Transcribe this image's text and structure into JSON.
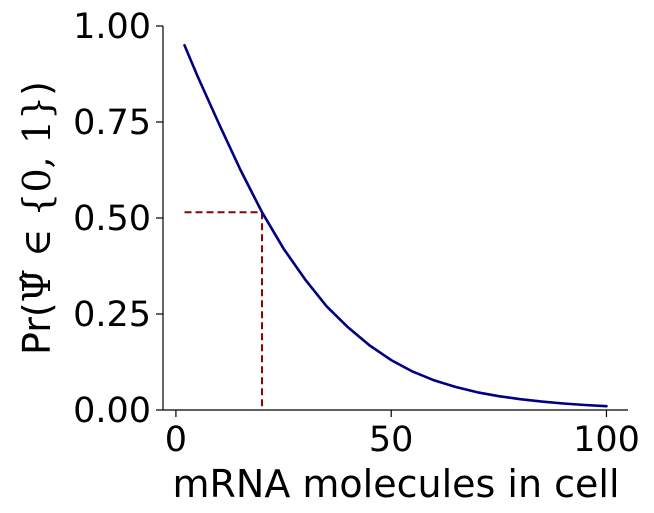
{
  "chart_data": {
    "type": "line",
    "title": "",
    "xlabel": "mRNA molecules in cell",
    "ylabel": {
      "prefix": "Pr(",
      "symbol": "Ψ̂",
      "relation": " ∈ ",
      "set": "{0, 1}",
      "suffix": ")"
    },
    "xlim": [
      -3,
      105
    ],
    "ylim": [
      0,
      1
    ],
    "xticks": [
      0,
      50,
      100
    ],
    "xtick_labels": [
      "0",
      "50",
      "100"
    ],
    "yticks": [
      0,
      0.25,
      0.5,
      0.75,
      1.0
    ],
    "ytick_labels": [
      "0.00",
      "0.25",
      "0.50",
      "0.75",
      "1.00"
    ],
    "grid": false,
    "series": [
      {
        "color": "#000080",
        "style": "solid",
        "x": [
          2,
          5,
          10,
          15,
          20,
          25,
          30,
          35,
          40,
          45,
          50,
          55,
          60,
          65,
          70,
          75,
          80,
          85,
          90,
          95,
          100
        ],
        "y": [
          0.95,
          0.87,
          0.745,
          0.625,
          0.515,
          0.42,
          0.34,
          0.27,
          0.215,
          0.168,
          0.13,
          0.1,
          0.077,
          0.06,
          0.046,
          0.036,
          0.028,
          0.022,
          0.017,
          0.013,
          0.01
        ]
      }
    ],
    "reference_lines": {
      "color": "#8b0000",
      "style": "dashed",
      "x": 20,
      "y": 0.515,
      "x_start": 2
    }
  }
}
